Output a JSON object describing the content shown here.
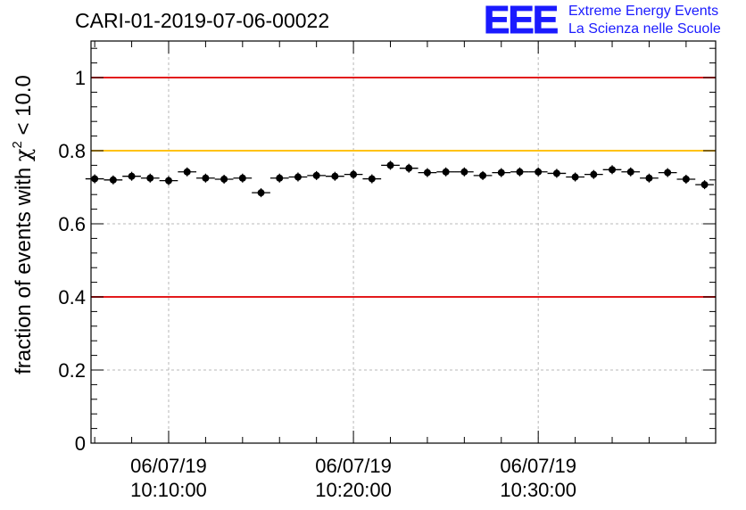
{
  "header": {
    "title": "CARI-01-2019-07-06-00022",
    "logo_text": "EEE",
    "logo_line1": "Extreme Energy Events",
    "logo_line2": "La Scienza nelle Scuole"
  },
  "chart_data": {
    "type": "scatter",
    "title": "CARI-01-2019-07-06-00022",
    "ylabel": "fraction of events with χ² < 10.0",
    "ylabel_parts": [
      "fraction of events with ",
      "χ",
      "2",
      " < 10.0"
    ],
    "xlabel": "",
    "ylim": [
      0,
      1.1
    ],
    "xlim_minutes": [
      -4.2,
      29.6
    ],
    "grid": true,
    "yticks": [
      0,
      0.2,
      0.4,
      0.6,
      0.8,
      1
    ],
    "ytick_labels": [
      "0",
      "0.2",
      "0.4",
      "0.6",
      "0.8",
      "1"
    ],
    "xticks_minutes": [
      0,
      10,
      20
    ],
    "xtick_labels": [
      [
        "06/07/19",
        "10:10:00"
      ],
      [
        "06/07/19",
        "10:20:00"
      ],
      [
        "06/07/19",
        "10:30:00"
      ]
    ],
    "reference_lines": [
      {
        "y": 1.0,
        "color": "#e31a1c"
      },
      {
        "y": 0.8,
        "color": "#ffc20e"
      },
      {
        "y": 0.4,
        "color": "#e31a1c"
      }
    ],
    "bin_width_minutes": 1,
    "x_minutes": [
      -4,
      -3,
      -2,
      -1,
      0,
      1,
      2,
      3,
      4,
      5,
      6,
      7,
      8,
      9,
      10,
      11,
      12,
      13,
      14,
      15,
      16,
      17,
      18,
      19,
      20,
      21,
      22,
      23,
      24,
      25,
      26,
      27,
      28,
      29
    ],
    "values": [
      0.723,
      0.72,
      0.73,
      0.725,
      0.718,
      0.742,
      0.725,
      0.722,
      0.725,
      0.685,
      0.725,
      0.728,
      0.732,
      0.73,
      0.735,
      0.723,
      0.76,
      0.752,
      0.74,
      0.742,
      0.742,
      0.732,
      0.74,
      0.742,
      0.742,
      0.738,
      0.728,
      0.735,
      0.748,
      0.742,
      0.725,
      0.74,
      0.722,
      0.707
    ]
  }
}
